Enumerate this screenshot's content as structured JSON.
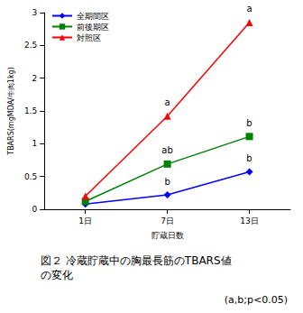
{
  "chart_data": {
    "type": "line",
    "title": "図２ 冷蔵貯蔵中の胸最長筋のTBARS値の変化",
    "subtitle": "(a,b;p<0.05)",
    "x_label": "貯蔵日数",
    "y_label": "TBARS(mgMDA/牛肉1kg)",
    "categories": [
      "1日",
      "7日",
      "13日"
    ],
    "series": [
      {
        "name": "全期間区",
        "color": "#0000ff",
        "marker": "diamond",
        "values": [
          0.08,
          0.22,
          0.57
        ]
      },
      {
        "name": "前後期区",
        "color": "#008000",
        "marker": "square",
        "values": [
          0.12,
          0.69,
          1.11
        ]
      },
      {
        "name": "対照区",
        "color": "#ff0000",
        "marker": "triangle",
        "values": [
          0.2,
          1.42,
          2.85
        ]
      }
    ],
    "annotations": [
      {
        "text": "b",
        "series": "全期間区",
        "category": "7日"
      },
      {
        "text": "b",
        "series": "全期間区",
        "category": "13日"
      },
      {
        "text": "ab",
        "series": "前後期区",
        "category": "7日"
      },
      {
        "text": "b",
        "series": "前後期区",
        "category": "13日"
      },
      {
        "text": "a",
        "series": "対照区",
        "category": "7日"
      },
      {
        "text": "a",
        "series": "対照区",
        "category": "13日"
      }
    ],
    "ylim": [
      0,
      3
    ],
    "yticks": [
      0,
      0.5,
      1,
      1.5,
      2,
      2.5,
      3
    ],
    "grid": false,
    "legend": "upper left"
  }
}
